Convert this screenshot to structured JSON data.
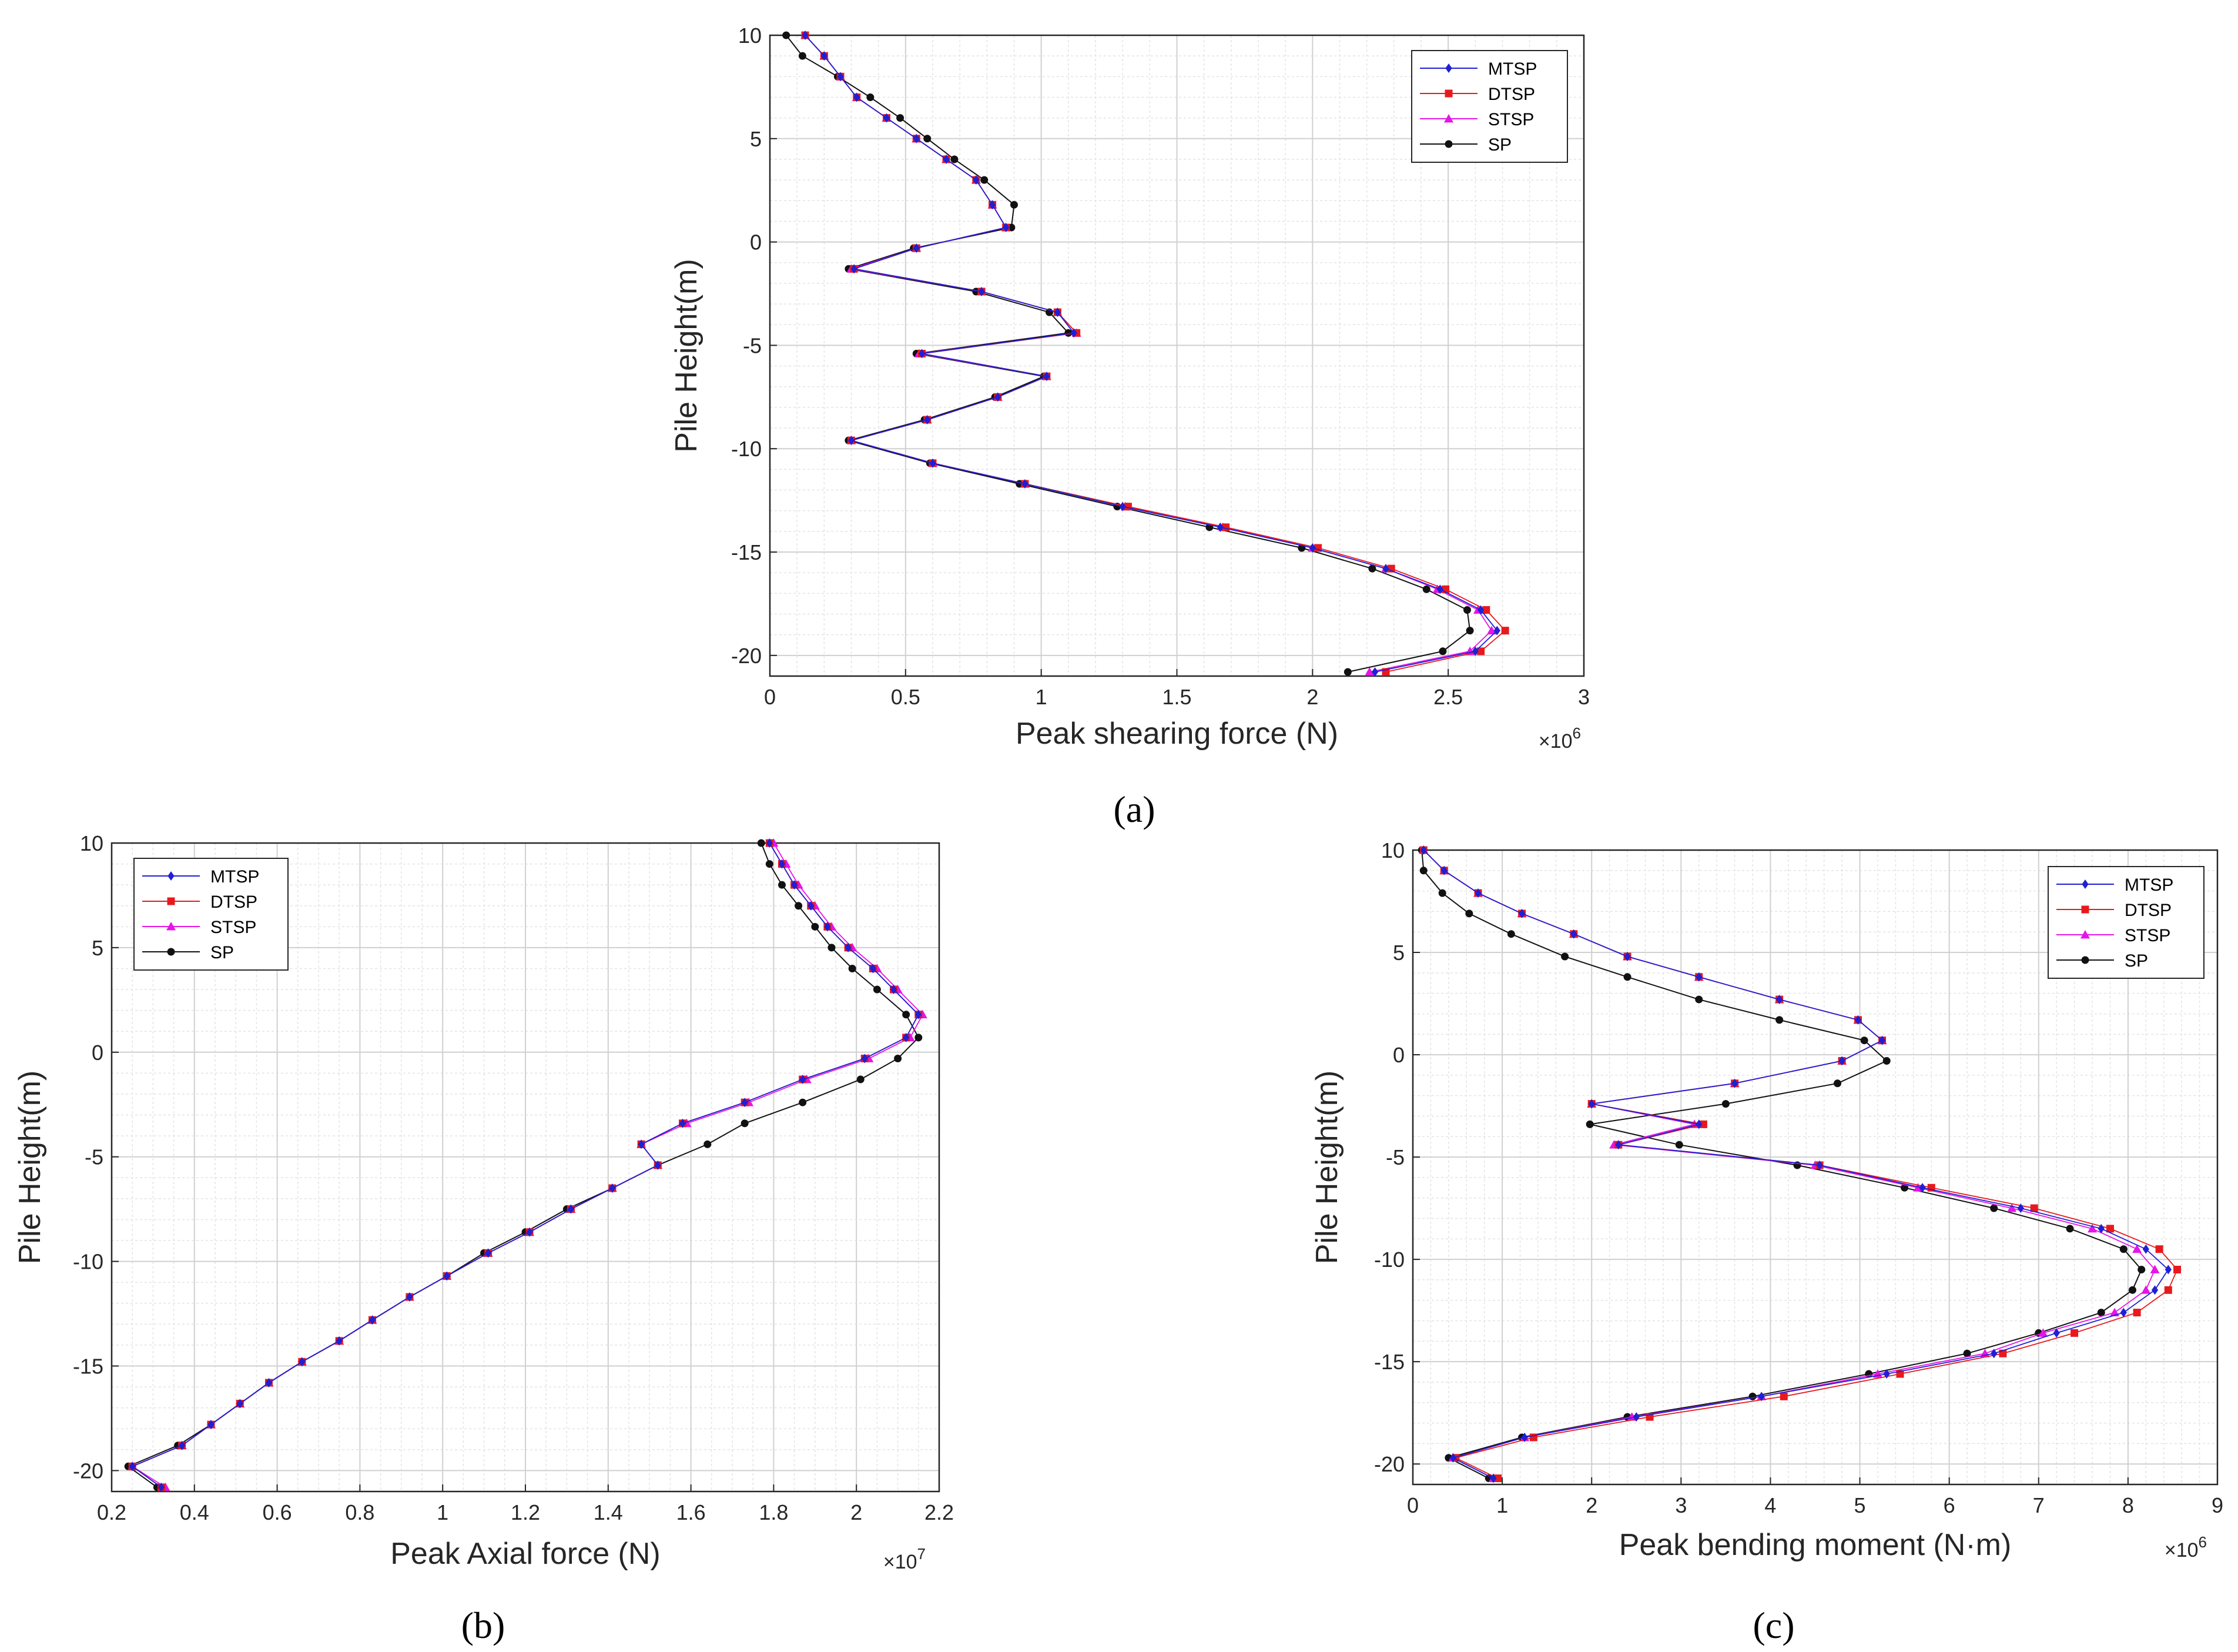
{
  "figure": {
    "panel_labels": [
      "(a)",
      "(b)",
      "(c)"
    ],
    "colors": {
      "MTSP": "#1f1fd6",
      "DTSP": "#e8191d",
      "STSP": "#e614e6",
      "SP": "#111111"
    },
    "legend_items": [
      "MTSP",
      "DTSP",
      "STSP",
      "SP"
    ]
  },
  "chart_data": [
    {
      "id": "a",
      "type": "line",
      "xlabel": "Peak shearing force (N)",
      "ylabel": "Pile Height(m)",
      "x_exponent": "×10^6",
      "exp_base": "×10",
      "exp_power": "6",
      "xlim": [
        0,
        3
      ],
      "ylim": [
        -21,
        10
      ],
      "xticks": [
        "0",
        "0.5",
        "1",
        "1.5",
        "2",
        "2.5",
        "3"
      ],
      "yticks": [
        "10",
        "5",
        "0",
        "-5",
        "-10",
        "-15",
        "-20"
      ],
      "legend_position": "top-right",
      "y": [
        10,
        9,
        8,
        7,
        6,
        5,
        4,
        3,
        1.8,
        0.7,
        -0.3,
        -1.3,
        -2.4,
        -3.4,
        -4.4,
        -5.4,
        -6.5,
        -7.5,
        -8.6,
        -9.6,
        -10.7,
        -11.7,
        -12.8,
        -13.8,
        -14.8,
        -15.8,
        -16.8,
        -17.8,
        -18.8,
        -19.8,
        -20.8
      ],
      "series": [
        {
          "name": "MTSP",
          "x": [
            0.13,
            0.2,
            0.26,
            0.32,
            0.43,
            0.54,
            0.65,
            0.76,
            0.82,
            0.87,
            0.54,
            0.31,
            0.78,
            1.06,
            1.12,
            0.56,
            1.02,
            0.84,
            0.58,
            0.3,
            0.6,
            0.94,
            1.3,
            1.66,
            2.0,
            2.27,
            2.47,
            2.62,
            2.68,
            2.6,
            2.23
          ]
        },
        {
          "name": "DTSP",
          "x": [
            0.13,
            0.2,
            0.26,
            0.32,
            0.43,
            0.54,
            0.65,
            0.76,
            0.82,
            0.87,
            0.54,
            0.31,
            0.78,
            1.06,
            1.13,
            0.56,
            1.02,
            0.84,
            0.58,
            0.3,
            0.6,
            0.94,
            1.32,
            1.68,
            2.02,
            2.29,
            2.49,
            2.64,
            2.71,
            2.62,
            2.27
          ]
        },
        {
          "name": "STSP",
          "x": [
            0.13,
            0.2,
            0.26,
            0.32,
            0.43,
            0.54,
            0.65,
            0.76,
            0.82,
            0.87,
            0.54,
            0.3,
            0.78,
            1.06,
            1.13,
            0.55,
            1.02,
            0.84,
            0.58,
            0.3,
            0.6,
            0.94,
            1.31,
            1.67,
            2.0,
            2.27,
            2.46,
            2.61,
            2.66,
            2.58,
            2.21
          ]
        },
        {
          "name": "SP",
          "x": [
            0.06,
            0.12,
            0.25,
            0.37,
            0.48,
            0.58,
            0.68,
            0.79,
            0.9,
            0.89,
            0.53,
            0.29,
            0.76,
            1.03,
            1.1,
            0.54,
            1.01,
            0.83,
            0.57,
            0.29,
            0.59,
            0.92,
            1.28,
            1.62,
            1.96,
            2.22,
            2.42,
            2.57,
            2.58,
            2.48,
            2.13
          ]
        }
      ]
    },
    {
      "id": "b",
      "type": "line",
      "xlabel": "Peak Axial force (N)",
      "ylabel": "Pile Height(m)",
      "x_exponent": "×10^7",
      "exp_base": "×10",
      "exp_power": "7",
      "xlim": [
        0.2,
        2.2
      ],
      "ylim": [
        -21,
        10
      ],
      "xticks": [
        "0.2",
        "0.4",
        "0.6",
        "0.8",
        "1",
        "1.2",
        "1.4",
        "1.6",
        "1.8",
        "2",
        "2.2"
      ],
      "yticks": [
        "10",
        "5",
        "0",
        "-5",
        "-10",
        "-15",
        "-20"
      ],
      "legend_position": "top-left",
      "y": [
        10,
        9,
        8,
        7,
        6,
        5,
        4,
        3,
        1.8,
        0.7,
        -0.3,
        -1.3,
        -2.4,
        -3.4,
        -4.4,
        -5.4,
        -6.5,
        -7.5,
        -8.6,
        -9.6,
        -10.7,
        -11.7,
        -12.8,
        -13.8,
        -14.8,
        -15.8,
        -16.8,
        -17.8,
        -18.8,
        -19.8,
        -20.8
      ],
      "series": [
        {
          "name": "MTSP",
          "x": [
            1.79,
            1.82,
            1.85,
            1.89,
            1.93,
            1.98,
            2.04,
            2.09,
            2.15,
            2.12,
            2.02,
            1.87,
            1.73,
            1.58,
            1.48,
            1.52,
            1.41,
            1.31,
            1.21,
            1.11,
            1.01,
            0.92,
            0.83,
            0.75,
            0.66,
            0.58,
            0.51,
            0.44,
            0.37,
            0.25,
            0.32
          ]
        },
        {
          "name": "DTSP",
          "x": [
            1.79,
            1.82,
            1.85,
            1.89,
            1.93,
            1.98,
            2.04,
            2.09,
            2.15,
            2.12,
            2.02,
            1.87,
            1.73,
            1.58,
            1.48,
            1.52,
            1.41,
            1.31,
            1.21,
            1.11,
            1.01,
            0.92,
            0.83,
            0.75,
            0.66,
            0.58,
            0.51,
            0.44,
            0.37,
            0.25,
            0.32
          ]
        },
        {
          "name": "STSP",
          "x": [
            1.8,
            1.83,
            1.86,
            1.9,
            1.94,
            1.99,
            2.05,
            2.1,
            2.16,
            2.13,
            2.03,
            1.88,
            1.74,
            1.59,
            1.48,
            1.52,
            1.41,
            1.31,
            1.21,
            1.11,
            1.01,
            0.92,
            0.83,
            0.75,
            0.66,
            0.58,
            0.51,
            0.44,
            0.37,
            0.25,
            0.33
          ]
        },
        {
          "name": "SP",
          "x": [
            1.77,
            1.79,
            1.82,
            1.86,
            1.9,
            1.94,
            1.99,
            2.05,
            2.12,
            2.15,
            2.1,
            2.01,
            1.87,
            1.73,
            1.64,
            1.52,
            1.41,
            1.3,
            1.2,
            1.1,
            1.01,
            0.92,
            0.83,
            0.75,
            0.66,
            0.58,
            0.51,
            0.44,
            0.36,
            0.24,
            0.31
          ]
        }
      ]
    },
    {
      "id": "c",
      "type": "line",
      "xlabel": "Peak bending moment (N·m)",
      "ylabel": "Pile Height(m)",
      "x_exponent": "×10^6",
      "exp_base": "×10",
      "exp_power": "6",
      "xlim": [
        0,
        9
      ],
      "ylim": [
        -21,
        10
      ],
      "xticks": [
        "0",
        "1",
        "2",
        "3",
        "4",
        "5",
        "6",
        "7",
        "8",
        "9"
      ],
      "yticks": [
        "10",
        "5",
        "0",
        "-5",
        "-10",
        "-15",
        "-20"
      ],
      "legend_position": "top-right",
      "y": [
        10,
        9,
        7.9,
        6.9,
        5.9,
        4.8,
        3.8,
        2.7,
        1.7,
        0.7,
        -0.3,
        -1.4,
        -2.4,
        -3.4,
        -4.4,
        -5.4,
        -6.5,
        -7.5,
        -8.5,
        -9.5,
        -10.5,
        -11.5,
        -12.6,
        -13.6,
        -14.6,
        -15.6,
        -16.7,
        -17.7,
        -18.7,
        -19.7,
        -20.7
      ],
      "series": [
        {
          "name": "MTSP",
          "x": [
            0.12,
            0.35,
            0.73,
            1.22,
            1.8,
            2.4,
            3.2,
            4.1,
            4.98,
            5.25,
            4.8,
            3.6,
            2.0,
            3.2,
            2.3,
            4.55,
            5.7,
            6.8,
            7.7,
            8.2,
            8.45,
            8.3,
            7.95,
            7.2,
            6.5,
            5.3,
            3.9,
            2.5,
            1.25,
            0.45,
            0.9
          ]
        },
        {
          "name": "DTSP",
          "x": [
            0.12,
            0.35,
            0.73,
            1.22,
            1.8,
            2.4,
            3.2,
            4.1,
            4.98,
            5.25,
            4.8,
            3.6,
            2.0,
            3.25,
            2.3,
            4.55,
            5.8,
            6.95,
            7.8,
            8.35,
            8.55,
            8.45,
            8.1,
            7.4,
            6.6,
            5.45,
            4.15,
            2.65,
            1.35,
            0.48,
            0.95
          ]
        },
        {
          "name": "STSP",
          "x": [
            0.12,
            0.35,
            0.73,
            1.22,
            1.8,
            2.4,
            3.2,
            4.1,
            4.98,
            5.25,
            4.8,
            3.6,
            2.0,
            3.15,
            2.25,
            4.5,
            5.65,
            6.7,
            7.6,
            8.1,
            8.3,
            8.2,
            7.85,
            7.05,
            6.4,
            5.2,
            3.9,
            2.45,
            1.25,
            0.45,
            0.9
          ]
        },
        {
          "name": "SP",
          "x": [
            0.1,
            0.12,
            0.33,
            0.63,
            1.1,
            1.7,
            2.4,
            3.2,
            4.1,
            5.05,
            5.3,
            4.75,
            3.5,
            1.98,
            2.98,
            4.3,
            5.5,
            6.5,
            7.35,
            7.95,
            8.15,
            8.05,
            7.7,
            7.0,
            6.2,
            5.1,
            3.8,
            2.4,
            1.22,
            0.4,
            0.85
          ]
        }
      ]
    }
  ]
}
